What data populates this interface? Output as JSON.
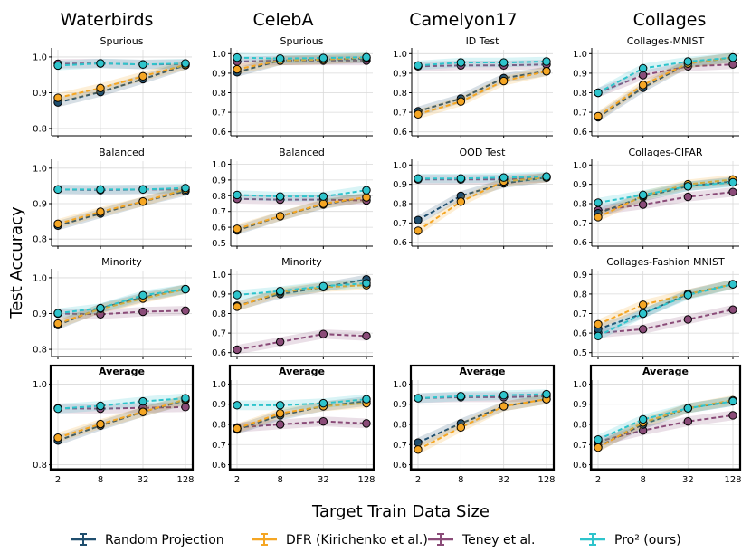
{
  "figure": {
    "ylabel": "Test Accuracy",
    "xlabel": "Target Train Data Size",
    "x_ticks": [
      "2",
      "8",
      "32",
      "128"
    ],
    "columns": [
      "Waterbirds",
      "CelebA",
      "Camelyon17",
      "Collages"
    ]
  },
  "legend": [
    {
      "name": "Random Projection",
      "color": "#1f4e6e"
    },
    {
      "name": "DFR (Kirichenko et al.)",
      "color": "#f5a623"
    },
    {
      "name": "Teney et al.",
      "color": "#8a4b78"
    },
    {
      "name": "Pro² (ours)",
      "color": "#2ec4cc"
    }
  ],
  "chart_data": [
    {
      "type": "line",
      "column": "Waterbirds",
      "row": 0,
      "title": "Spurious",
      "bold": false,
      "x": [
        2,
        8,
        32,
        128
      ],
      "ylim": [
        0.78,
        1.02
      ],
      "yticks": [
        0.8,
        0.9,
        1.0
      ],
      "ytick_labels": [
        "0.8",
        "0.9",
        "1.0"
      ],
      "series": [
        {
          "name": "Random Projection",
          "values": [
            0.873,
            0.902,
            0.938,
            0.977
          ]
        },
        {
          "name": "DFR (Kirichenko et al.)",
          "values": [
            0.886,
            0.913,
            0.946,
            0.978
          ]
        },
        {
          "name": "Teney et al.",
          "values": [
            0.981,
            0.982,
            0.979,
            0.98
          ]
        },
        {
          "name": "Pro² (ours)",
          "values": [
            0.976,
            0.982,
            0.979,
            0.982
          ]
        }
      ]
    },
    {
      "type": "line",
      "column": "Waterbirds",
      "row": 1,
      "title": "Balanced",
      "bold": false,
      "x": [
        2,
        8,
        32,
        128
      ],
      "ylim": [
        0.78,
        1.02
      ],
      "yticks": [
        0.8,
        0.9,
        1.0
      ],
      "ytick_labels": [
        "0.8",
        "0.9",
        "1.0"
      ],
      "series": [
        {
          "name": "Random Projection",
          "values": [
            0.838,
            0.872,
            0.906,
            0.935
          ]
        },
        {
          "name": "DFR (Kirichenko et al.)",
          "values": [
            0.843,
            0.877,
            0.906,
            0.94
          ]
        },
        {
          "name": "Teney et al.",
          "values": [
            0.94,
            0.938,
            0.94,
            0.94
          ]
        },
        {
          "name": "Pro² (ours)",
          "values": [
            0.94,
            0.94,
            0.94,
            0.944
          ]
        }
      ]
    },
    {
      "type": "line",
      "column": "Waterbirds",
      "row": 2,
      "title": "Minority",
      "bold": false,
      "x": [
        2,
        8,
        32,
        128
      ],
      "ylim": [
        0.78,
        1.02
      ],
      "yticks": [
        0.8,
        0.9,
        1.0
      ],
      "ytick_labels": [
        "0.8",
        "0.9",
        "1.0"
      ],
      "series": [
        {
          "name": "Random Projection",
          "values": [
            0.868,
            0.915,
            0.945,
            0.968
          ]
        },
        {
          "name": "DFR (Kirichenko et al.)",
          "values": [
            0.872,
            0.913,
            0.942,
            0.968
          ]
        },
        {
          "name": "Teney et al.",
          "values": [
            0.9,
            0.898,
            0.905,
            0.908
          ]
        },
        {
          "name": "Pro² (ours)",
          "values": [
            0.901,
            0.915,
            0.951,
            0.968
          ]
        }
      ]
    },
    {
      "type": "line",
      "column": "Waterbirds",
      "row": 3,
      "title": "Average",
      "bold": true,
      "x": [
        2,
        8,
        32,
        128
      ],
      "ylim": [
        0.79,
        1.01
      ],
      "yticks": [
        0.8,
        1.0
      ],
      "ytick_labels": [
        "0.8",
        "1.0"
      ],
      "series": [
        {
          "name": "Random Projection",
          "values": [
            0.86,
            0.897,
            0.931,
            0.96
          ]
        },
        {
          "name": "DFR (Kirichenko et al.)",
          "values": [
            0.867,
            0.901,
            0.931,
            0.962
          ]
        },
        {
          "name": "Teney et al.",
          "values": [
            0.94,
            0.939,
            0.941,
            0.943
          ]
        },
        {
          "name": "Pro² (ours)",
          "values": [
            0.939,
            0.946,
            0.957,
            0.965
          ]
        }
      ]
    },
    {
      "type": "line",
      "column": "CelebA",
      "row": 0,
      "title": "Spurious",
      "bold": false,
      "x": [
        2,
        8,
        32,
        128
      ],
      "ylim": [
        0.58,
        1.02
      ],
      "yticks": [
        0.6,
        0.7,
        0.8,
        0.9,
        1.0
      ],
      "ytick_labels": [
        "0.6",
        "0.7",
        "0.8",
        "0.9",
        "1.0"
      ],
      "series": [
        {
          "name": "Random Projection",
          "values": [
            0.905,
            0.965,
            0.97,
            0.975
          ]
        },
        {
          "name": "DFR (Kirichenko et al.)",
          "values": [
            0.92,
            0.965,
            0.97,
            0.98
          ]
        },
        {
          "name": "Teney et al.",
          "values": [
            0.96,
            0.965,
            0.965,
            0.965
          ]
        },
        {
          "name": "Pro² (ours)",
          "values": [
            0.98,
            0.975,
            0.978,
            0.982
          ]
        }
      ]
    },
    {
      "type": "line",
      "column": "CelebA",
      "row": 1,
      "title": "Balanced",
      "bold": false,
      "x": [
        2,
        8,
        32,
        128
      ],
      "ylim": [
        0.48,
        1.02
      ],
      "yticks": [
        0.5,
        0.6,
        0.7,
        0.8,
        0.9,
        1.0
      ],
      "ytick_labels": [
        "0.5",
        "0.6",
        "0.7",
        "0.8",
        "0.9",
        "1.0"
      ],
      "series": [
        {
          "name": "Random Projection",
          "values": [
            0.58,
            0.67,
            0.745,
            0.79
          ]
        },
        {
          "name": "DFR (Kirichenko et al.)",
          "values": [
            0.59,
            0.67,
            0.75,
            0.79
          ]
        },
        {
          "name": "Teney et al.",
          "values": [
            0.78,
            0.775,
            0.775,
            0.77
          ]
        },
        {
          "name": "Pro² (ours)",
          "values": [
            0.805,
            0.795,
            0.795,
            0.835
          ]
        }
      ]
    },
    {
      "type": "line",
      "column": "CelebA",
      "row": 2,
      "title": "Minority",
      "bold": false,
      "x": [
        2,
        8,
        32,
        128
      ],
      "ylim": [
        0.58,
        1.02
      ],
      "yticks": [
        0.6,
        0.7,
        0.8,
        0.9,
        1.0
      ],
      "ytick_labels": [
        "0.6",
        "0.7",
        "0.8",
        "0.9",
        "1.0"
      ],
      "series": [
        {
          "name": "Random Projection",
          "values": [
            0.84,
            0.9,
            0.935,
            0.975
          ]
        },
        {
          "name": "DFR (Kirichenko et al.)",
          "values": [
            0.835,
            0.91,
            0.935,
            0.945
          ]
        },
        {
          "name": "Teney et al.",
          "values": [
            0.615,
            0.655,
            0.695,
            0.685
          ]
        },
        {
          "name": "Pro² (ours)",
          "values": [
            0.895,
            0.915,
            0.94,
            0.955
          ]
        }
      ]
    },
    {
      "type": "line",
      "column": "CelebA",
      "row": 3,
      "title": "Average",
      "bold": true,
      "x": [
        2,
        8,
        32,
        128
      ],
      "ylim": [
        0.58,
        1.02
      ],
      "yticks": [
        0.6,
        0.7,
        0.8,
        0.9,
        1.0
      ],
      "ytick_labels": [
        "0.6",
        "0.7",
        "0.8",
        "0.9",
        "1.0"
      ],
      "series": [
        {
          "name": "Random Projection",
          "values": [
            0.775,
            0.845,
            0.89,
            0.915
          ]
        },
        {
          "name": "DFR (Kirichenko et al.)",
          "values": [
            0.78,
            0.855,
            0.89,
            0.905
          ]
        },
        {
          "name": "Teney et al.",
          "values": [
            0.785,
            0.8,
            0.815,
            0.805
          ]
        },
        {
          "name": "Pro² (ours)",
          "values": [
            0.895,
            0.895,
            0.905,
            0.925
          ]
        }
      ]
    },
    {
      "type": "line",
      "column": "Camelyon17",
      "row": 0,
      "title": "ID Test",
      "bold": false,
      "x": [
        2,
        8,
        32,
        128
      ],
      "ylim": [
        0.58,
        1.02
      ],
      "yticks": [
        0.6,
        0.7,
        0.8,
        0.9,
        1.0
      ],
      "ytick_labels": [
        "0.6",
        "0.7",
        "0.8",
        "0.9",
        "1.0"
      ],
      "series": [
        {
          "name": "Random Projection",
          "values": [
            0.705,
            0.77,
            0.875,
            0.91
          ]
        },
        {
          "name": "DFR (Kirichenko et al.)",
          "values": [
            0.69,
            0.755,
            0.86,
            0.91
          ]
        },
        {
          "name": "Teney et al.",
          "values": [
            0.935,
            0.94,
            0.94,
            0.945
          ]
        },
        {
          "name": "Pro² (ours)",
          "values": [
            0.94,
            0.955,
            0.955,
            0.96
          ]
        }
      ]
    },
    {
      "type": "line",
      "column": "Camelyon17",
      "row": 1,
      "title": "OOD Test",
      "bold": false,
      "x": [
        2,
        8,
        32,
        128
      ],
      "ylim": [
        0.58,
        1.02
      ],
      "yticks": [
        0.6,
        0.7,
        0.8,
        0.9,
        1.0
      ],
      "ytick_labels": [
        "0.6",
        "0.7",
        "0.8",
        "0.9",
        "1.0"
      ],
      "series": [
        {
          "name": "Random Projection",
          "values": [
            0.715,
            0.84,
            0.905,
            0.935
          ]
        },
        {
          "name": "DFR (Kirichenko et al.)",
          "values": [
            0.66,
            0.81,
            0.915,
            0.935
          ]
        },
        {
          "name": "Teney et al.",
          "values": [
            0.925,
            0.925,
            0.925,
            0.935
          ]
        },
        {
          "name": "Pro² (ours)",
          "values": [
            0.93,
            0.93,
            0.935,
            0.94
          ]
        }
      ]
    },
    {
      "type": "line",
      "column": "Camelyon17",
      "row": 3,
      "title": "Average",
      "bold": true,
      "x": [
        2,
        8,
        32,
        128
      ],
      "ylim": [
        0.58,
        1.02
      ],
      "yticks": [
        0.6,
        0.7,
        0.8,
        0.9,
        1.0
      ],
      "ytick_labels": [
        "0.6",
        "0.7",
        "0.8",
        "0.9",
        "1.0"
      ],
      "series": [
        {
          "name": "Random Projection",
          "values": [
            0.71,
            0.805,
            0.89,
            0.925
          ]
        },
        {
          "name": "DFR (Kirichenko et al.)",
          "values": [
            0.675,
            0.785,
            0.89,
            0.925
          ]
        },
        {
          "name": "Teney et al.",
          "values": [
            0.93,
            0.935,
            0.935,
            0.94
          ]
        },
        {
          "name": "Pro² (ours)",
          "values": [
            0.93,
            0.94,
            0.945,
            0.95
          ]
        }
      ]
    },
    {
      "type": "line",
      "column": "Collages",
      "row": 0,
      "title": "Collages-MNIST",
      "bold": false,
      "x": [
        2,
        8,
        32,
        128
      ],
      "ylim": [
        0.58,
        1.02
      ],
      "yticks": [
        0.6,
        0.7,
        0.8,
        0.9,
        1.0
      ],
      "ytick_labels": [
        "0.6",
        "0.7",
        "0.8",
        "0.9",
        "1.0"
      ],
      "series": [
        {
          "name": "Random Projection",
          "values": [
            0.675,
            0.825,
            0.95,
            0.98
          ]
        },
        {
          "name": "DFR (Kirichenko et al.)",
          "values": [
            0.68,
            0.84,
            0.95,
            0.98
          ]
        },
        {
          "name": "Teney et al.",
          "values": [
            0.8,
            0.89,
            0.935,
            0.945
          ]
        },
        {
          "name": "Pro² (ours)",
          "values": [
            0.8,
            0.925,
            0.96,
            0.98
          ]
        }
      ]
    },
    {
      "type": "line",
      "column": "Collages",
      "row": 1,
      "title": "Collages-CIFAR",
      "bold": false,
      "x": [
        2,
        8,
        32,
        128
      ],
      "ylim": [
        0.58,
        1.02
      ],
      "yticks": [
        0.6,
        0.7,
        0.8,
        0.9,
        1.0
      ],
      "ytick_labels": [
        "0.6",
        "0.7",
        "0.8",
        "0.9",
        "1.0"
      ],
      "series": [
        {
          "name": "Random Projection",
          "values": [
            0.75,
            0.835,
            0.89,
            0.915
          ]
        },
        {
          "name": "DFR (Kirichenko et al.)",
          "values": [
            0.73,
            0.84,
            0.9,
            0.925
          ]
        },
        {
          "name": "Teney et al.",
          "values": [
            0.765,
            0.795,
            0.835,
            0.86
          ]
        },
        {
          "name": "Pro² (ours)",
          "values": [
            0.805,
            0.845,
            0.89,
            0.91
          ]
        }
      ]
    },
    {
      "type": "line",
      "column": "Collages",
      "row": 2,
      "title": "Collages-Fashion MNIST",
      "bold": false,
      "x": [
        2,
        8,
        32,
        128
      ],
      "ylim": [
        0.48,
        0.92
      ],
      "yticks": [
        0.5,
        0.6,
        0.7,
        0.8,
        0.9
      ],
      "ytick_labels": [
        "0.5",
        "0.6",
        "0.7",
        "0.8",
        "0.9"
      ],
      "series": [
        {
          "name": "Random Projection",
          "values": [
            0.62,
            0.7,
            0.8,
            0.85
          ]
        },
        {
          "name": "DFR (Kirichenko et al.)",
          "values": [
            0.645,
            0.745,
            0.8,
            0.85
          ]
        },
        {
          "name": "Teney et al.",
          "values": [
            0.6,
            0.62,
            0.67,
            0.72
          ]
        },
        {
          "name": "Pro² (ours)",
          "values": [
            0.585,
            0.7,
            0.795,
            0.85
          ]
        }
      ]
    },
    {
      "type": "line",
      "column": "Collages",
      "row": 3,
      "title": "Average",
      "bold": true,
      "x": [
        2,
        8,
        32,
        128
      ],
      "ylim": [
        0.58,
        1.02
      ],
      "yticks": [
        0.6,
        0.7,
        0.8,
        0.9,
        1.0
      ],
      "ytick_labels": [
        "0.6",
        "0.7",
        "0.8",
        "0.9",
        "1.0"
      ],
      "series": [
        {
          "name": "Random Projection",
          "values": [
            0.69,
            0.8,
            0.88,
            0.915
          ]
        },
        {
          "name": "DFR (Kirichenko et al.)",
          "values": [
            0.685,
            0.81,
            0.88,
            0.92
          ]
        },
        {
          "name": "Teney et al.",
          "values": [
            0.715,
            0.77,
            0.815,
            0.845
          ]
        },
        {
          "name": "Pro² (ours)",
          "values": [
            0.725,
            0.825,
            0.88,
            0.915
          ]
        }
      ]
    }
  ]
}
